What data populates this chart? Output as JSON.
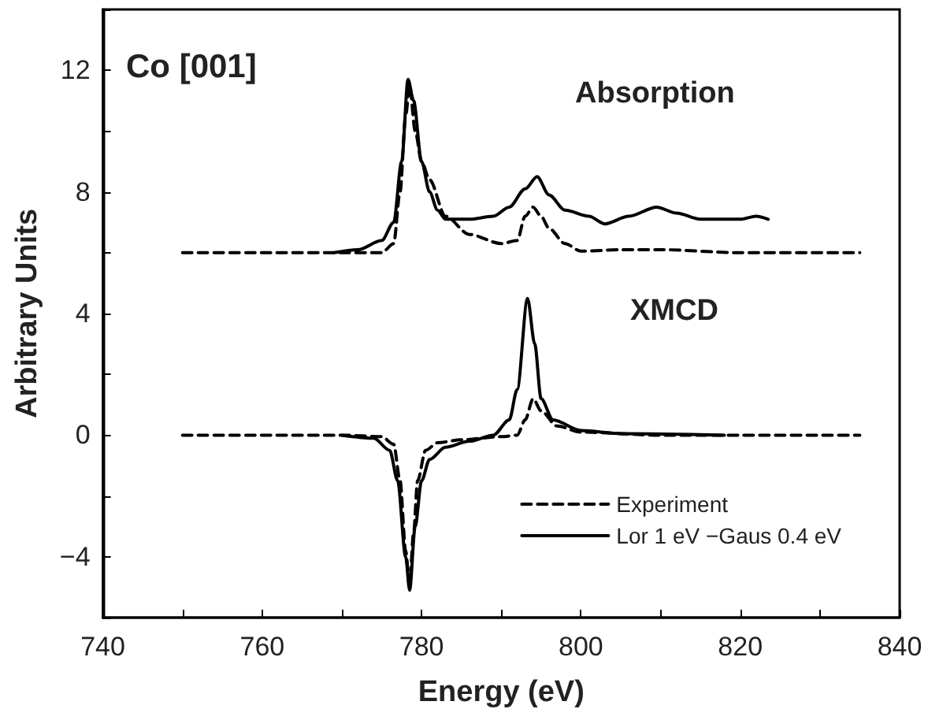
{
  "chart_data": {
    "type": "line",
    "xlabel": "Energy (eV)",
    "ylabel": "Arbitrary Units",
    "annotations": [
      "Co [001]",
      "Absorption",
      "XMCD"
    ],
    "xlim": [
      740,
      840
    ],
    "ylim": [
      -6,
      14
    ],
    "xticks": [
      740,
      {
        "value": 750,
        "label": null
      },
      760,
      {
        "value": 770,
        "label": null
      },
      780,
      {
        "value": 790,
        "label": null
      },
      800,
      {
        "value": 810,
        "label": null
      },
      820,
      {
        "value": 830,
        "label": null
      },
      840
    ],
    "yticks": [
      {
        "value": -6,
        "label": null
      },
      {
        "value": -4,
        "label": "−4"
      },
      {
        "value": -2,
        "label": null
      },
      0,
      {
        "value": 2,
        "label": null
      },
      4,
      {
        "value": 6,
        "label": null
      },
      8,
      {
        "value": 10,
        "label": null
      },
      12,
      {
        "value": 14,
        "label": null
      }
    ],
    "grid": false,
    "legend": "bottom right",
    "marker": "none",
    "series": [
      {
        "name": "Experiment",
        "color": "#000000",
        "line_style": "dashed",
        "x": [
          750,
          760,
          770,
          775,
          776.5,
          777.3,
          778,
          778.5,
          779.2,
          780,
          781,
          783,
          786,
          790,
          792,
          793,
          794,
          795,
          796,
          798,
          800,
          805,
          810,
          820,
          835
        ],
        "values": [
          6.0,
          6.0,
          6.0,
          6.0,
          6.3,
          8.0,
          10.5,
          11.5,
          10.0,
          9.0,
          8.4,
          7.2,
          6.6,
          6.3,
          6.4,
          7.2,
          7.5,
          7.2,
          6.8,
          6.3,
          6.05,
          6.1,
          6.1,
          6.0,
          6.0
        ]
      },
      {
        "name": "Lor 1 eV −Gaus 0.4 eV",
        "color": "#000000",
        "line_style": "solid",
        "x": [
          769,
          772,
          775,
          776.5,
          777.5,
          778.3,
          779,
          780,
          781,
          782,
          783,
          786,
          789,
          791,
          793,
          794.5,
          796,
          798,
          801,
          803,
          806,
          809.5,
          812,
          815,
          820,
          822,
          823.5
        ],
        "values": [
          6.0,
          6.1,
          6.4,
          7.0,
          9.0,
          11.7,
          11.0,
          9.0,
          8.0,
          7.4,
          7.1,
          7.1,
          7.2,
          7.5,
          8.1,
          8.5,
          7.9,
          7.4,
          7.2,
          6.95,
          7.2,
          7.5,
          7.3,
          7.1,
          7.1,
          7.2,
          7.1
        ]
      },
      {
        "color": "#000000",
        "line_style": "dashed",
        "x": [
          750,
          760,
          770,
          775,
          776.5,
          777.3,
          778,
          778.5,
          779,
          779.5,
          780.5,
          782,
          785,
          790,
          792,
          793,
          794,
          795,
          797,
          800,
          810,
          820,
          835
        ],
        "values": [
          0,
          0,
          0,
          -0.05,
          -0.3,
          -1.5,
          -3.8,
          -4.9,
          -3.2,
          -1.5,
          -0.5,
          -0.25,
          -0.15,
          -0.05,
          0,
          0.5,
          1.2,
          0.8,
          0.3,
          0.1,
          0,
          0,
          0
        ]
      },
      {
        "color": "#000000",
        "line_style": "solid",
        "x": [
          770,
          774,
          776,
          777,
          778,
          778.5,
          779.2,
          780,
          781,
          783,
          786,
          789,
          791,
          792,
          793.3,
          794.2,
          795,
          796.5,
          800,
          805,
          818
        ],
        "values": [
          0,
          -0.1,
          -0.5,
          -1.5,
          -4.0,
          -5.1,
          -3.0,
          -1.5,
          -0.8,
          -0.4,
          -0.2,
          0,
          0.5,
          1.5,
          4.5,
          3.0,
          1.2,
          0.5,
          0.15,
          0.05,
          0
        ]
      }
    ]
  }
}
